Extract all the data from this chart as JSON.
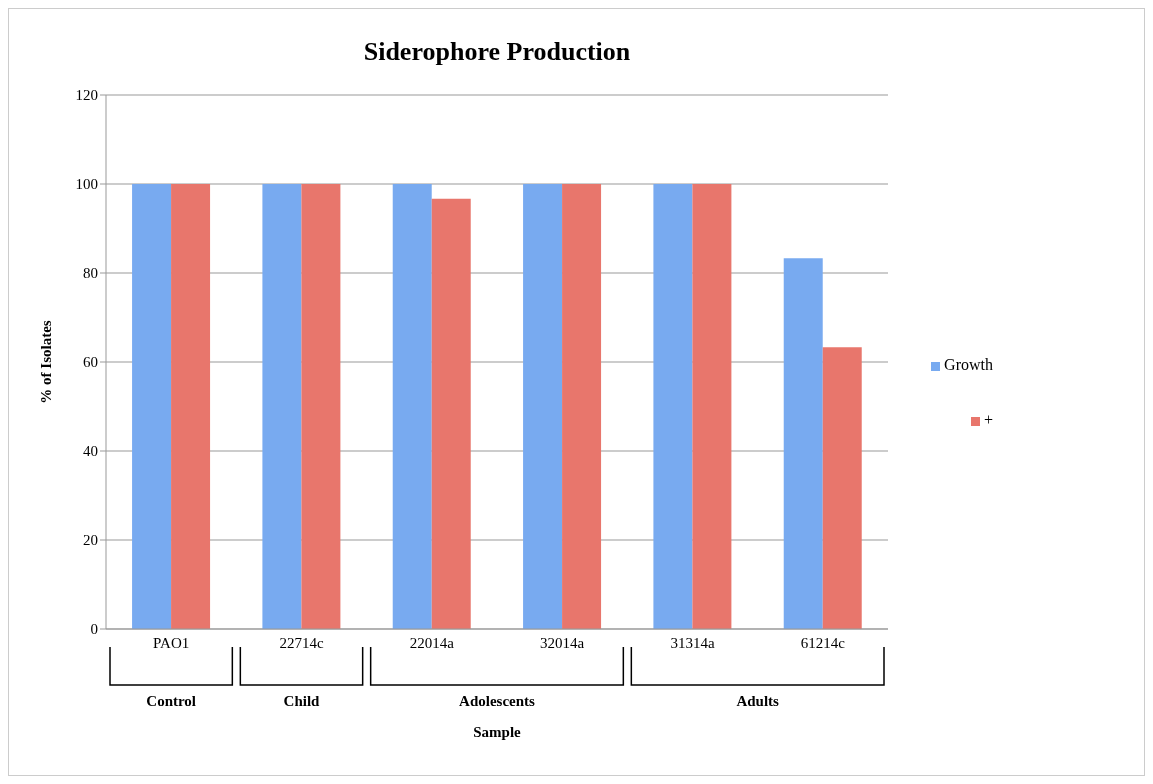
{
  "chart_data": {
    "type": "bar",
    "title": "Siderophore Production",
    "xlabel": "Sample",
    "ylabel": "% of Isolates",
    "categories": [
      "PAO1",
      "22714c",
      "22014a",
      "32014a",
      "31314a",
      "61214c"
    ],
    "series": [
      {
        "name": "Growth",
        "color": "#78aaf0",
        "values": [
          100,
          100,
          100,
          100,
          100,
          83.3
        ]
      },
      {
        "name": "+",
        "color": "#e8766c",
        "values": [
          100,
          100,
          96.7,
          100,
          100,
          63.3
        ]
      }
    ],
    "annotations": [
      "Control",
      "Child",
      "Adolescents",
      "Adults"
    ],
    "ylim": [
      0,
      120
    ],
    "yticks": [
      0,
      20,
      40,
      60,
      80,
      100,
      120
    ],
    "grid": "y",
    "legend": "right"
  }
}
